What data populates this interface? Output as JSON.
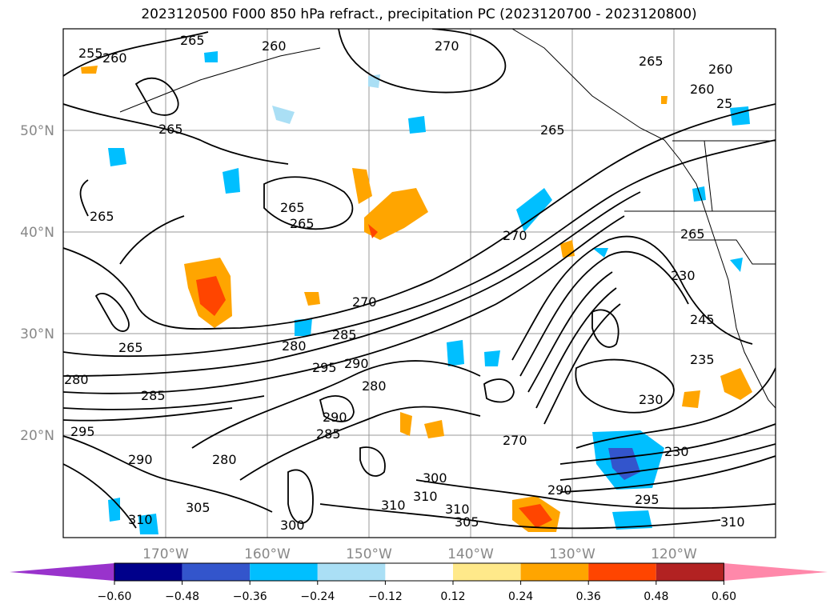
{
  "title": "2023120500 F000 850 hPa refract., precipitation PC (2023120700 - 2023120800)",
  "lat_labels": [
    "50°N",
    "40°N",
    "30°N",
    "20°N"
  ],
  "lon_labels": [
    "170°W",
    "160°W",
    "150°W",
    "140°W",
    "130°W",
    "120°W"
  ],
  "contour_labels": [
    "265",
    "255",
    "260",
    "260",
    "270",
    "265",
    "260",
    "265",
    "260",
    "25",
    "265",
    "265",
    "265",
    "265",
    "270",
    "270",
    "280",
    "285",
    "280",
    "295",
    "290",
    "280",
    "305",
    "310",
    "300",
    "305",
    "310",
    "290",
    "295",
    "310",
    "310",
    "230",
    "230",
    "235",
    "245",
    "230",
    "285",
    "265",
    "270",
    "300",
    "310",
    "265",
    "280",
    "290",
    "285",
    "290",
    "295"
  ],
  "colorbar": {
    "ticks": [
      "−0.60",
      "−0.48",
      "−0.36",
      "−0.24",
      "−0.12",
      "0.12",
      "0.24",
      "0.36",
      "0.48",
      "0.60"
    ],
    "colors": [
      "#9933cc",
      "#00008b",
      "#3355cc",
      "#00bfff",
      "#aadff5",
      "#ffffff",
      "#ffe98a",
      "#ffa500",
      "#ff4500",
      "#b22222",
      "#ff88aa"
    ]
  }
}
